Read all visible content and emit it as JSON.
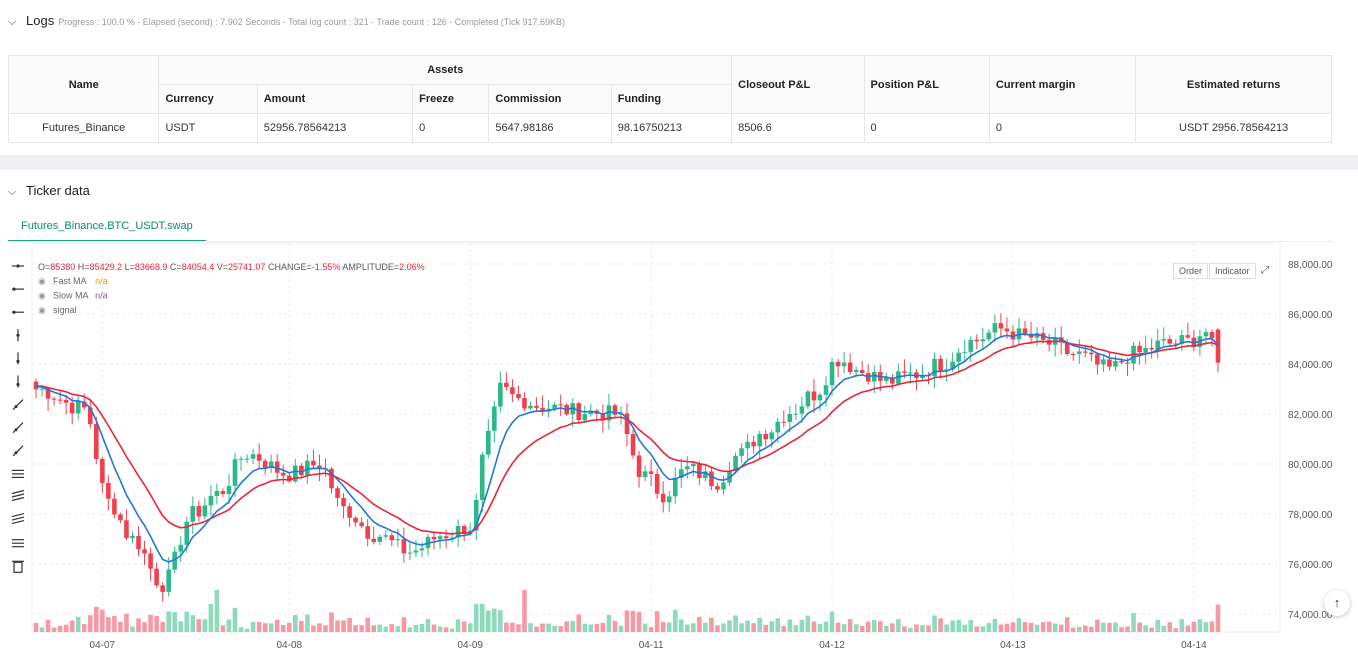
{
  "logs": {
    "title": "Logs",
    "meta": "Progress : 100.0 % - Elapsed (second) : 7.902 Seconds - Total log count : 321 - Trade count : 126 - Completed (Tick 917.69KB)",
    "table": {
      "headers": {
        "name": "Name",
        "assets": "Assets",
        "currency": "Currency",
        "amount": "Amount",
        "freeze": "Freeze",
        "commission": "Commission",
        "funding": "Funding",
        "closeout": "Closeout P&L",
        "position": "Position P&L",
        "margin": "Current margin",
        "returns": "Estimated returns"
      },
      "row": {
        "name": "Futures_Binance",
        "currency": "USDT",
        "amount": "52956.78564213",
        "freeze": "0",
        "commission": "5647.98186",
        "funding": "98.16750213",
        "closeout": "8506.6",
        "position": "0",
        "margin": "0",
        "returns": "USDT 2956.78564213"
      }
    }
  },
  "ticker": {
    "title": "Ticker data",
    "tab": "Futures_Binance.BTC_USDT.swap",
    "buttons": {
      "order": "Order",
      "indicator": "Indicator"
    },
    "scroll_top": "↑"
  },
  "chart_data": {
    "type": "candlestick",
    "ohlc_legend": {
      "o": "O=85380",
      "h": "H=85429.2",
      "l": "L=83668.9",
      "c": "C=84054.4",
      "v": "V=25741.07",
      "change": "CHANGE=-1.55%",
      "amplitude": "AMPLITUDE=2.06%"
    },
    "legend": [
      {
        "name": "Fast MA",
        "value": "n/a",
        "color": "#ff9800"
      },
      {
        "name": "Slow MA",
        "value": "n/a",
        "color": "#7e57c2"
      },
      {
        "name": "signal",
        "value": "",
        "color": "#888888"
      }
    ],
    "y_ticks": [
      "88,000.00",
      "86,000.00",
      "84,000.00",
      "82,000.00",
      "80,000.00",
      "78,000.00",
      "76,000.00",
      "74,000.00"
    ],
    "y_tick_values": [
      88000,
      86000,
      84000,
      82000,
      80000,
      78000,
      76000,
      74000
    ],
    "x_ticks": [
      "04-07",
      "04-08",
      "04-09",
      "04-11",
      "04-12",
      "04-13",
      "04-14"
    ],
    "x_tick_index": [
      11,
      42,
      72,
      102,
      132,
      162,
      192
    ],
    "ylim": [
      73600,
      88200
    ],
    "colors": {
      "up": "#2eb88a",
      "down": "#f0404f",
      "up_vol": "#8fd9bd",
      "down_vol": "#f59aa4",
      "fast": "#2378d6",
      "slow": "#e8263a"
    },
    "anchors": [
      [
        0,
        83000
      ],
      [
        8,
        82200
      ],
      [
        12,
        78500
      ],
      [
        16,
        77000
      ],
      [
        21,
        75200
      ],
      [
        26,
        78000
      ],
      [
        30,
        78800
      ],
      [
        35,
        80400
      ],
      [
        42,
        79600
      ],
      [
        47,
        80000
      ],
      [
        51,
        78200
      ],
      [
        56,
        77200
      ],
      [
        62,
        76500
      ],
      [
        68,
        77200
      ],
      [
        72,
        77500
      ],
      [
        75,
        81000
      ],
      [
        77,
        83000
      ],
      [
        80,
        82600
      ],
      [
        84,
        82300
      ],
      [
        90,
        82100
      ],
      [
        96,
        82000
      ],
      [
        101,
        79500
      ],
      [
        104,
        78800
      ],
      [
        108,
        79800
      ],
      [
        113,
        79300
      ],
      [
        116,
        80300
      ],
      [
        121,
        81300
      ],
      [
        125,
        82100
      ],
      [
        129,
        82800
      ],
      [
        133,
        84200
      ],
      [
        137,
        83700
      ],
      [
        141,
        83300
      ],
      [
        146,
        83600
      ],
      [
        150,
        84000
      ],
      [
        155,
        84900
      ],
      [
        160,
        85400
      ],
      [
        164,
        85100
      ],
      [
        168,
        84800
      ],
      [
        172,
        84400
      ],
      [
        178,
        83800
      ],
      [
        182,
        84400
      ],
      [
        187,
        84800
      ],
      [
        191,
        84900
      ],
      [
        194,
        85300
      ],
      [
        196,
        84100
      ]
    ],
    "candle_count": 197
  }
}
